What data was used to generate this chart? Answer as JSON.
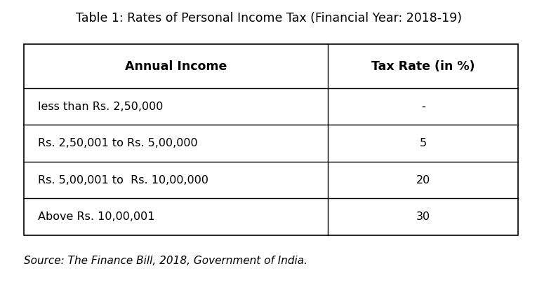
{
  "title": "Table 1: Rates of Personal Income Tax (Financial Year: 2018-19)",
  "col_headers": [
    "Annual Income",
    "Tax Rate (in %)"
  ],
  "rows": [
    [
      "less than Rs. 2,50,000",
      "-"
    ],
    [
      "Rs. 2,50,001 to Rs. 5,00,000",
      "5"
    ],
    [
      "Rs. 5,00,001 to  Rs. 10,00,000",
      "20"
    ],
    [
      "Above Rs. 10,00,001",
      "30"
    ]
  ],
  "source": "Source: The Finance Bill, 2018, Government of India.",
  "bg_color": "#ffffff",
  "border_color": "#000000",
  "title_fontsize": 12.5,
  "header_fontsize": 12.5,
  "body_fontsize": 11.5,
  "source_fontsize": 11,
  "col_split": 0.615
}
